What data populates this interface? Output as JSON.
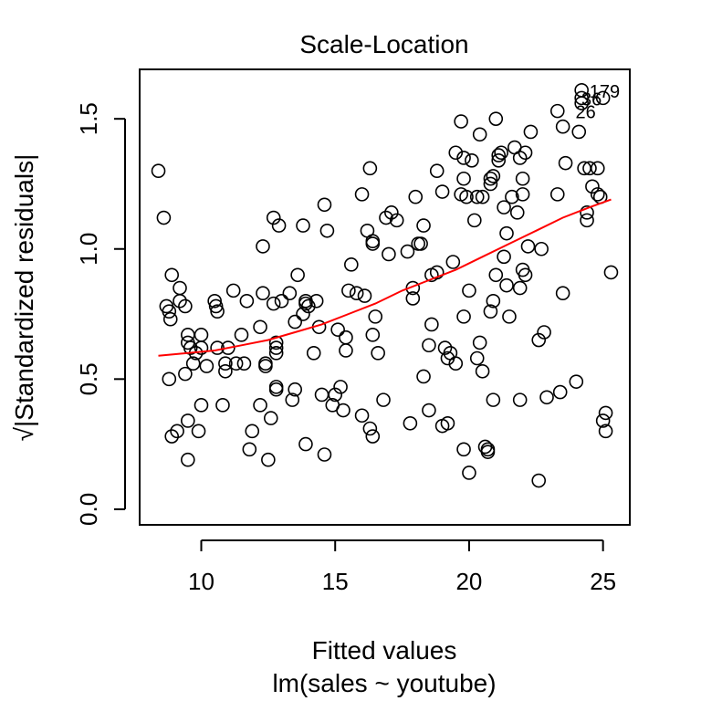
{
  "chart_data": {
    "type": "scatter",
    "title": "Scale-Location",
    "xlabel": "Fitted values",
    "subtitle": "lm(sales ~ youtube)",
    "ylabel": "√|Standardized residuals|",
    "xlim": [
      7.7,
      26.0
    ],
    "ylim": [
      -0.06,
      1.69
    ],
    "xticks": [
      10,
      15,
      20,
      25
    ],
    "yticks": [
      0.0,
      0.5,
      1.0,
      1.5
    ],
    "xtick_labels": [
      "10",
      "15",
      "20",
      "25"
    ],
    "ytick_labels": [
      "0.0",
      "0.5",
      "1.0",
      "1.5"
    ],
    "grid": false,
    "point_color": "#000000",
    "smooth_color": "#ff0000",
    "points": [
      [
        8.4,
        1.3
      ],
      [
        8.6,
        1.12
      ],
      [
        8.7,
        0.78
      ],
      [
        8.8,
        0.76
      ],
      [
        8.85,
        0.73
      ],
      [
        8.9,
        0.9
      ],
      [
        8.8,
        0.5
      ],
      [
        8.9,
        0.28
      ],
      [
        9.1,
        0.3
      ],
      [
        9.2,
        0.85
      ],
      [
        9.2,
        0.8
      ],
      [
        9.4,
        0.78
      ],
      [
        9.4,
        0.52
      ],
      [
        9.5,
        0.67
      ],
      [
        9.5,
        0.64
      ],
      [
        9.6,
        0.62
      ],
      [
        9.5,
        0.34
      ],
      [
        9.5,
        0.19
      ],
      [
        9.7,
        0.56
      ],
      [
        9.8,
        0.6
      ],
      [
        9.9,
        0.3
      ],
      [
        10.0,
        0.4
      ],
      [
        10.0,
        0.67
      ],
      [
        10.0,
        0.62
      ],
      [
        10.2,
        0.55
      ],
      [
        10.5,
        0.8
      ],
      [
        10.55,
        0.78
      ],
      [
        10.6,
        0.76
      ],
      [
        10.6,
        0.62
      ],
      [
        10.8,
        0.4
      ],
      [
        10.9,
        0.56
      ],
      [
        10.9,
        0.53
      ],
      [
        11.0,
        0.62
      ],
      [
        11.2,
        0.84
      ],
      [
        11.3,
        0.56
      ],
      [
        11.5,
        0.67
      ],
      [
        11.6,
        0.56
      ],
      [
        11.7,
        0.8
      ],
      [
        11.8,
        0.23
      ],
      [
        11.9,
        0.3
      ],
      [
        12.2,
        0.7
      ],
      [
        12.2,
        0.4
      ],
      [
        12.3,
        1.01
      ],
      [
        12.3,
        0.83
      ],
      [
        12.4,
        0.55
      ],
      [
        12.4,
        0.56
      ],
      [
        12.5,
        0.19
      ],
      [
        12.6,
        0.35
      ],
      [
        12.7,
        1.12
      ],
      [
        12.7,
        0.79
      ],
      [
        12.8,
        0.62
      ],
      [
        12.8,
        0.47
      ],
      [
        12.8,
        0.46
      ],
      [
        12.8,
        0.6
      ],
      [
        12.8,
        0.64
      ],
      [
        12.9,
        1.09
      ],
      [
        13.0,
        0.8
      ],
      [
        13.3,
        0.83
      ],
      [
        13.4,
        0.42
      ],
      [
        13.5,
        0.72
      ],
      [
        13.5,
        0.46
      ],
      [
        13.6,
        0.9
      ],
      [
        13.8,
        1.09
      ],
      [
        13.8,
        0.75
      ],
      [
        13.9,
        0.8
      ],
      [
        13.9,
        0.79
      ],
      [
        14.0,
        0.78
      ],
      [
        13.9,
        0.25
      ],
      [
        14.2,
        0.6
      ],
      [
        14.3,
        0.8
      ],
      [
        14.4,
        0.7
      ],
      [
        14.5,
        0.44
      ],
      [
        14.6,
        1.17
      ],
      [
        14.7,
        1.07
      ],
      [
        14.6,
        0.21
      ],
      [
        14.9,
        0.4
      ],
      [
        15.0,
        0.44
      ],
      [
        15.1,
        0.69
      ],
      [
        15.2,
        0.47
      ],
      [
        15.3,
        0.38
      ],
      [
        15.4,
        0.66
      ],
      [
        15.4,
        0.61
      ],
      [
        15.5,
        0.84
      ],
      [
        15.6,
        0.94
      ],
      [
        15.8,
        0.83
      ],
      [
        16.0,
        1.21
      ],
      [
        16.0,
        0.36
      ],
      [
        16.1,
        0.82
      ],
      [
        16.2,
        1.07
      ],
      [
        16.3,
        1.31
      ],
      [
        16.4,
        1.02
      ],
      [
        16.4,
        1.03
      ],
      [
        16.3,
        0.31
      ],
      [
        16.4,
        0.28
      ],
      [
        16.4,
        0.67
      ],
      [
        16.5,
        0.74
      ],
      [
        16.6,
        0.6
      ],
      [
        16.8,
        0.42
      ],
      [
        16.9,
        1.12
      ],
      [
        17.0,
        0.98
      ],
      [
        17.1,
        1.14
      ],
      [
        17.3,
        1.11
      ],
      [
        17.7,
        0.99
      ],
      [
        17.8,
        0.33
      ],
      [
        17.9,
        0.85
      ],
      [
        17.9,
        0.81
      ],
      [
        18.0,
        1.2
      ],
      [
        18.1,
        1.02
      ],
      [
        18.2,
        1.02
      ],
      [
        18.3,
        1.09
      ],
      [
        18.3,
        0.51
      ],
      [
        18.5,
        0.38
      ],
      [
        18.5,
        0.63
      ],
      [
        18.6,
        0.71
      ],
      [
        18.6,
        0.9
      ],
      [
        18.8,
        0.91
      ],
      [
        18.8,
        1.3
      ],
      [
        19.0,
        0.32
      ],
      [
        19.0,
        1.22
      ],
      [
        19.1,
        0.62
      ],
      [
        19.2,
        0.58
      ],
      [
        19.3,
        0.6
      ],
      [
        19.2,
        0.33
      ],
      [
        19.4,
        0.95
      ],
      [
        19.5,
        0.56
      ],
      [
        19.5,
        1.37
      ],
      [
        19.7,
        1.49
      ],
      [
        19.7,
        1.21
      ],
      [
        19.8,
        1.35
      ],
      [
        19.8,
        1.27
      ],
      [
        19.8,
        0.74
      ],
      [
        19.8,
        0.23
      ],
      [
        19.9,
        1.2
      ],
      [
        20.0,
        0.14
      ],
      [
        20.0,
        0.84
      ],
      [
        20.1,
        1.34
      ],
      [
        20.2,
        1.11
      ],
      [
        20.3,
        1.2
      ],
      [
        20.3,
        0.58
      ],
      [
        20.4,
        1.44
      ],
      [
        20.4,
        0.64
      ],
      [
        20.5,
        1.2
      ],
      [
        20.5,
        0.53
      ],
      [
        20.6,
        0.24
      ],
      [
        20.7,
        0.23
      ],
      [
        20.7,
        0.22
      ],
      [
        20.8,
        1.27
      ],
      [
        20.8,
        1.25
      ],
      [
        20.8,
        0.76
      ],
      [
        20.9,
        1.28
      ],
      [
        20.9,
        0.8
      ],
      [
        20.9,
        0.42
      ],
      [
        21.0,
        1.5
      ],
      [
        21.0,
        0.9
      ],
      [
        21.1,
        1.36
      ],
      [
        21.1,
        1.34
      ],
      [
        21.2,
        1.37
      ],
      [
        21.3,
        1.16
      ],
      [
        21.3,
        0.97
      ],
      [
        21.4,
        1.06
      ],
      [
        21.4,
        0.86
      ],
      [
        21.5,
        0.74
      ],
      [
        21.6,
        1.2
      ],
      [
        21.7,
        1.39
      ],
      [
        21.8,
        1.14
      ],
      [
        21.9,
        1.35
      ],
      [
        21.9,
        0.42
      ],
      [
        21.9,
        0.85
      ],
      [
        22.0,
        1.27
      ],
      [
        22.0,
        1.21
      ],
      [
        22.0,
        0.92
      ],
      [
        22.1,
        1.37
      ],
      [
        22.1,
        0.9
      ],
      [
        22.2,
        1.01
      ],
      [
        22.3,
        1.45
      ],
      [
        22.6,
        0.65
      ],
      [
        22.6,
        0.11
      ],
      [
        22.7,
        1.0
      ],
      [
        22.8,
        0.68
      ],
      [
        22.9,
        0.43
      ],
      [
        23.3,
        1.21
      ],
      [
        23.3,
        1.53
      ],
      [
        23.4,
        0.45
      ],
      [
        23.5,
        1.47
      ],
      [
        23.5,
        0.83
      ],
      [
        23.6,
        1.33
      ],
      [
        24.0,
        0.49
      ],
      [
        24.1,
        1.45
      ],
      [
        24.2,
        1.56
      ],
      [
        24.2,
        1.58
      ],
      [
        24.2,
        1.61
      ],
      [
        24.3,
        1.31
      ],
      [
        24.4,
        1.14
      ],
      [
        24.4,
        1.11
      ],
      [
        24.5,
        1.31
      ],
      [
        24.6,
        1.24
      ],
      [
        24.8,
        1.31
      ],
      [
        24.8,
        1.21
      ],
      [
        24.9,
        1.2
      ],
      [
        25.0,
        1.58
      ],
      [
        25.0,
        0.34
      ],
      [
        25.1,
        0.37
      ],
      [
        25.1,
        0.3
      ],
      [
        25.3,
        0.91
      ]
    ],
    "smooth": {
      "name": "smooth",
      "x": [
        8.4,
        9.5,
        10.5,
        11.5,
        12.5,
        13.5,
        14.5,
        15.5,
        16.5,
        17.5,
        18.5,
        19.5,
        20.5,
        21.5,
        22.5,
        23.5,
        24.5,
        25.3
      ],
      "y": [
        0.59,
        0.6,
        0.61,
        0.63,
        0.65,
        0.68,
        0.71,
        0.75,
        0.79,
        0.84,
        0.88,
        0.92,
        0.97,
        1.02,
        1.07,
        1.12,
        1.16,
        1.19
      ]
    },
    "annotations": [
      {
        "text": "179",
        "x": 24.22,
        "y": 1.61
      },
      {
        "text": "36",
        "x": 23.92,
        "y": 1.58
      },
      {
        "text": "26",
        "x": 23.7,
        "y": 1.53
      }
    ]
  }
}
